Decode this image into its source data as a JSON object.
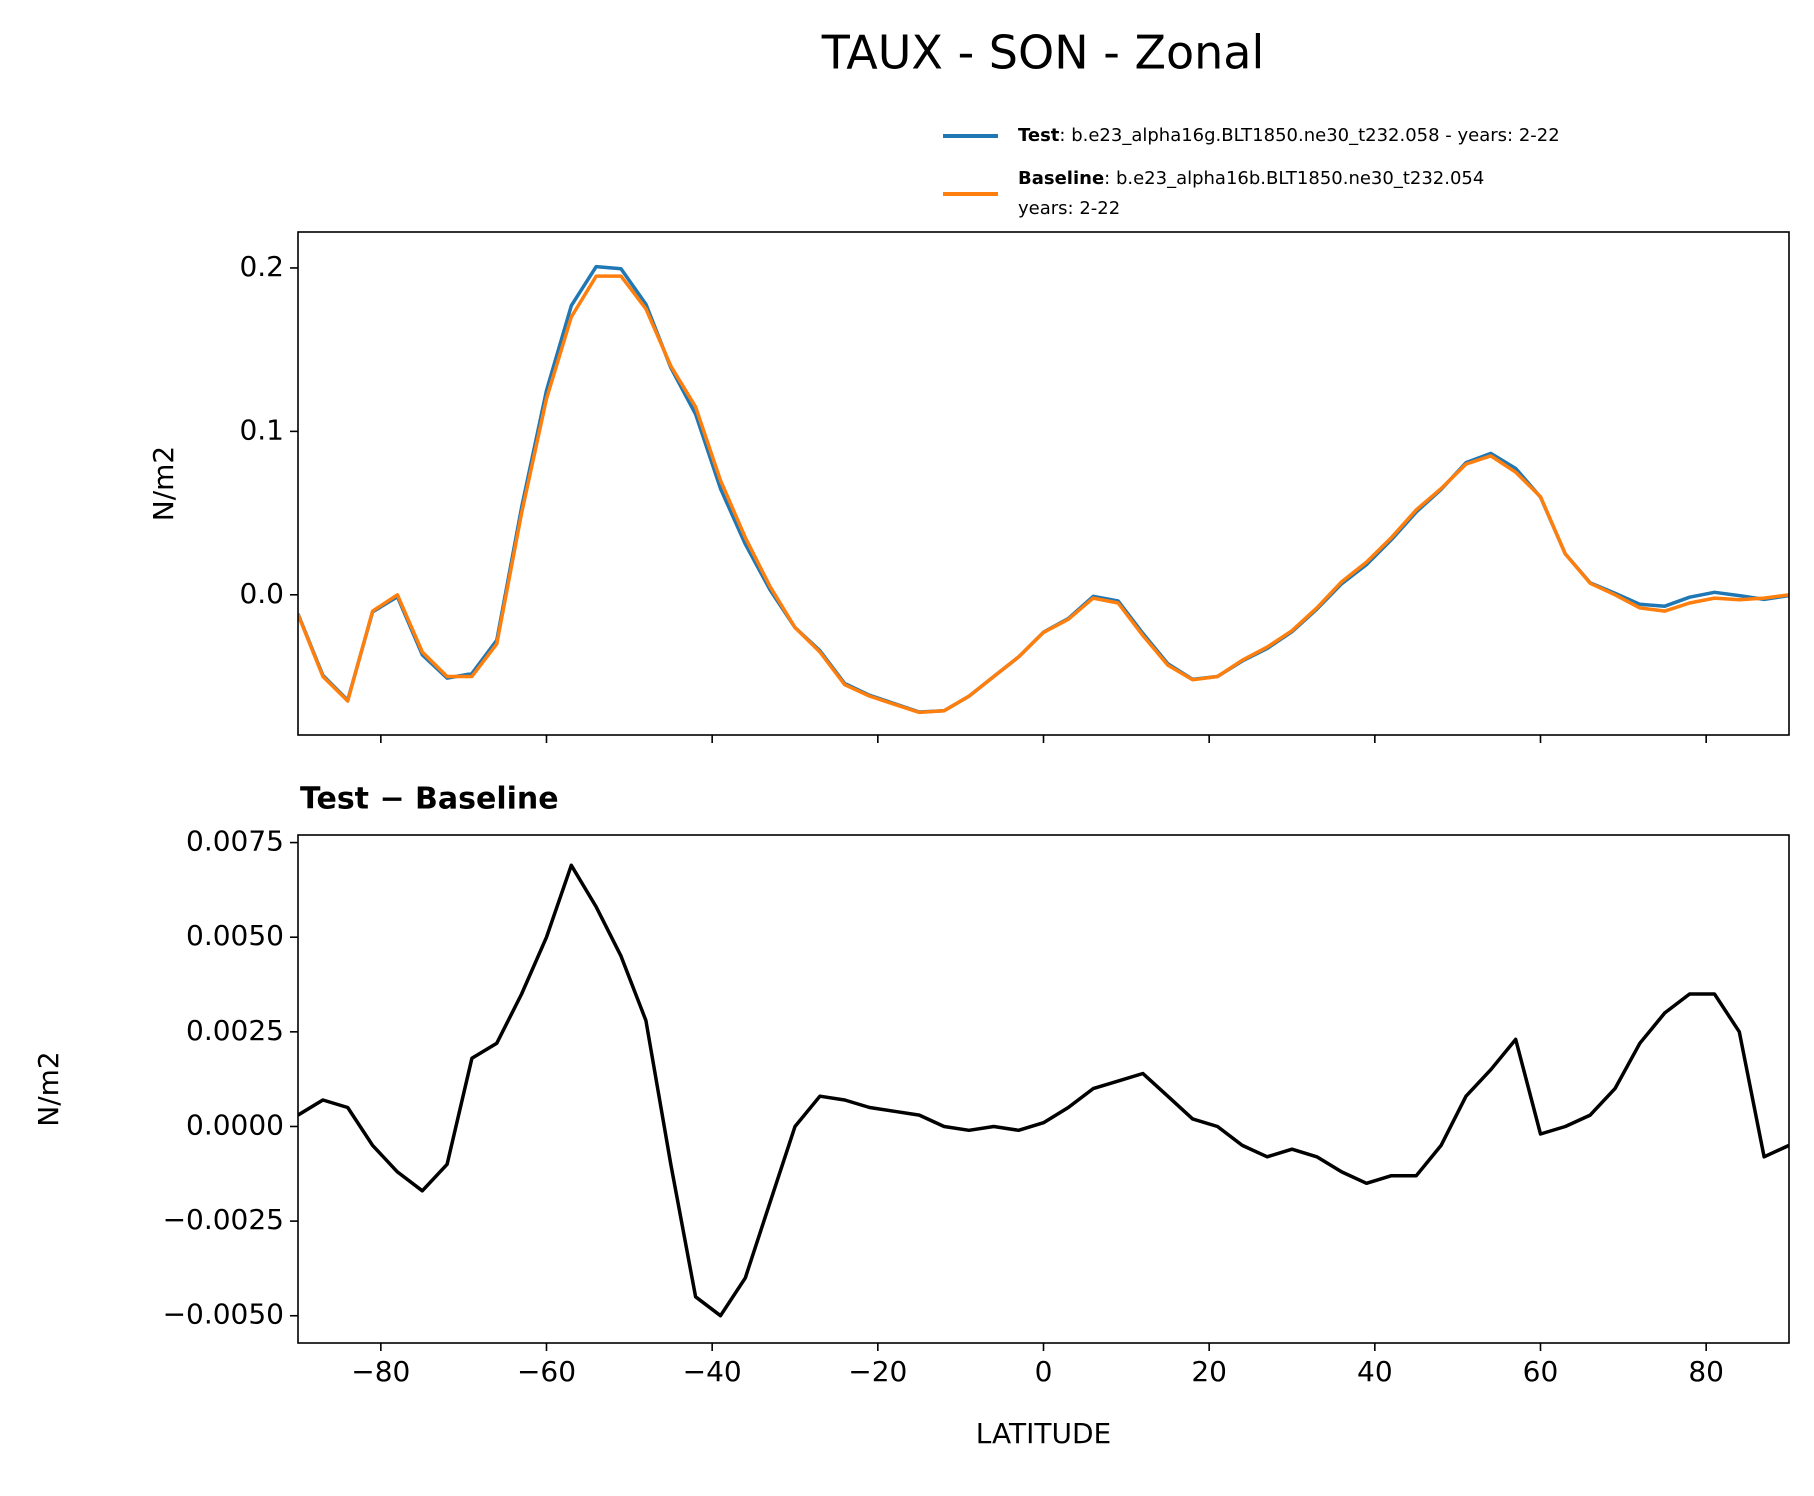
{
  "chart_data": [
    {
      "type": "line",
      "title": "TAUX - SON - Zonal",
      "ylabel": "N/m2",
      "x": [
        -90,
        -87,
        -84,
        -81,
        -78,
        -75,
        -72,
        -69,
        -66,
        -63,
        -60,
        -57,
        -54,
        -51,
        -48,
        -45,
        -42,
        -39,
        -36,
        -33,
        -30,
        -27,
        -24,
        -21,
        -18,
        -15,
        -12,
        -9,
        -6,
        -3,
        0,
        3,
        6,
        9,
        12,
        15,
        18,
        21,
        24,
        27,
        30,
        33,
        36,
        39,
        42,
        45,
        48,
        51,
        54,
        57,
        60,
        63,
        66,
        69,
        72,
        75,
        78,
        81,
        84,
        87,
        90
      ],
      "xlim": [
        -90,
        90
      ],
      "xticks": [
        -80,
        -60,
        -40,
        -20,
        0,
        20,
        40,
        60,
        80
      ],
      "ylim": [
        -0.0858,
        0.222
      ],
      "yticks": [
        {
          "value": 0,
          "label": "0.0"
        },
        0.1,
        0.2
      ],
      "series": [
        {
          "name": "Test",
          "legend_text": ": b.e23_alpha16g.BLT1850.ne30_t232.058 - years: 2-22",
          "color": "#1f77b4",
          "values": [
            -0.0117,
            -0.0493,
            -0.0645,
            -0.0105,
            -0.0012,
            -0.0367,
            -0.051,
            -0.0482,
            -0.0278,
            0.0535,
            0.125,
            0.1769,
            0.2008,
            0.1995,
            0.1778,
            0.139,
            0.1105,
            0.065,
            0.031,
            0.003,
            -0.02,
            -0.0342,
            -0.0543,
            -0.0615,
            -0.0666,
            -0.0717,
            -0.071,
            -0.0621,
            -0.05,
            -0.0381,
            -0.0229,
            -0.0145,
            -0.001,
            -0.0038,
            -0.0236,
            -0.0422,
            -0.0518,
            -0.05,
            -0.0405,
            -0.0328,
            -0.0226,
            -0.0088,
            0.0068,
            0.0185,
            0.0337,
            0.0507,
            0.0645,
            0.0808,
            0.0865,
            0.0773,
            0.0598,
            0.025,
            0.0073,
            0.001,
            -0.0058,
            -0.007,
            -0.0015,
            0.0015,
            -0.0005,
            -0.0028,
            -0.0005
          ]
        },
        {
          "name": "Baseline",
          "legend_text": [
            ": b.e23_alpha16b.BLT1850.ne30_t232.054",
            "years: 2-22"
          ],
          "color": "#ff7f0e",
          "values": [
            -0.012,
            -0.05,
            -0.065,
            -0.01,
            0.0,
            -0.035,
            -0.05,
            -0.05,
            -0.03,
            0.05,
            0.12,
            0.17,
            0.195,
            0.195,
            0.175,
            0.14,
            0.115,
            0.07,
            0.035,
            0.005,
            -0.02,
            -0.035,
            -0.055,
            -0.062,
            -0.067,
            -0.072,
            -0.071,
            -0.062,
            -0.05,
            -0.038,
            -0.023,
            -0.015,
            -0.002,
            -0.005,
            -0.025,
            -0.043,
            -0.052,
            -0.05,
            -0.04,
            -0.032,
            -0.022,
            -0.008,
            0.008,
            0.02,
            0.035,
            0.052,
            0.065,
            0.08,
            0.085,
            0.075,
            0.06,
            0.025,
            0.007,
            0.0,
            -0.008,
            -0.01,
            -0.005,
            -0.002,
            -0.003,
            -0.002,
            0.0
          ]
        }
      ]
    },
    {
      "type": "line",
      "title": "Test − Baseline",
      "ylabel": "N/m2",
      "xlabel": "LATITUDE",
      "x": [
        -90,
        -87,
        -84,
        -81,
        -78,
        -75,
        -72,
        -69,
        -66,
        -63,
        -60,
        -57,
        -54,
        -51,
        -48,
        -45,
        -42,
        -39,
        -36,
        -33,
        -30,
        -27,
        -24,
        -21,
        -18,
        -15,
        -12,
        -9,
        -6,
        -3,
        0,
        3,
        6,
        9,
        12,
        15,
        18,
        21,
        24,
        27,
        30,
        33,
        36,
        39,
        42,
        45,
        48,
        51,
        54,
        57,
        60,
        63,
        66,
        69,
        72,
        75,
        78,
        81,
        84,
        87,
        90
      ],
      "xlim": [
        -90,
        90
      ],
      "xticks": [
        {
          "value": -80,
          "label": "−80"
        },
        {
          "value": -60,
          "label": "−60"
        },
        {
          "value": -40,
          "label": "−40"
        },
        {
          "value": -20,
          "label": "−20"
        },
        0,
        20,
        40,
        60,
        80
      ],
      "ylim": [
        -0.00572,
        0.0077
      ],
      "yticks": [
        {
          "value": -0.005,
          "label": "−0.0050"
        },
        {
          "value": -0.0025,
          "label": "−0.0025"
        },
        {
          "value": 0,
          "label": "0.0000"
        },
        0.0025,
        {
          "value": 0.005,
          "label": "0.0050"
        },
        0.0075
      ],
      "series": [
        {
          "color": "#000000",
          "values": [
            0.0003,
            0.0007,
            0.0005,
            -0.0005,
            -0.0012,
            -0.0017,
            -0.001,
            0.0018,
            0.0022,
            0.0035,
            0.005,
            0.0069,
            0.0058,
            0.0045,
            0.0028,
            -0.001,
            -0.0045,
            -0.005,
            -0.004,
            -0.002,
            0.0,
            0.0008,
            0.0007,
            0.0005,
            0.0004,
            0.0003,
            0.0,
            -0.0001,
            0.0,
            -0.0001,
            0.0001,
            0.0005,
            0.001,
            0.0012,
            0.0014,
            0.0008,
            0.0002,
            0.0,
            -0.0005,
            -0.0008,
            -0.0006,
            -0.0008,
            -0.0012,
            -0.0015,
            -0.0013,
            -0.0013,
            -0.0005,
            0.0008,
            0.0015,
            0.0023,
            -0.0002,
            0.0,
            0.0003,
            0.001,
            0.0022,
            0.003,
            0.0035,
            0.0035,
            0.0025,
            -0.0008,
            -0.0005
          ]
        }
      ]
    }
  ]
}
